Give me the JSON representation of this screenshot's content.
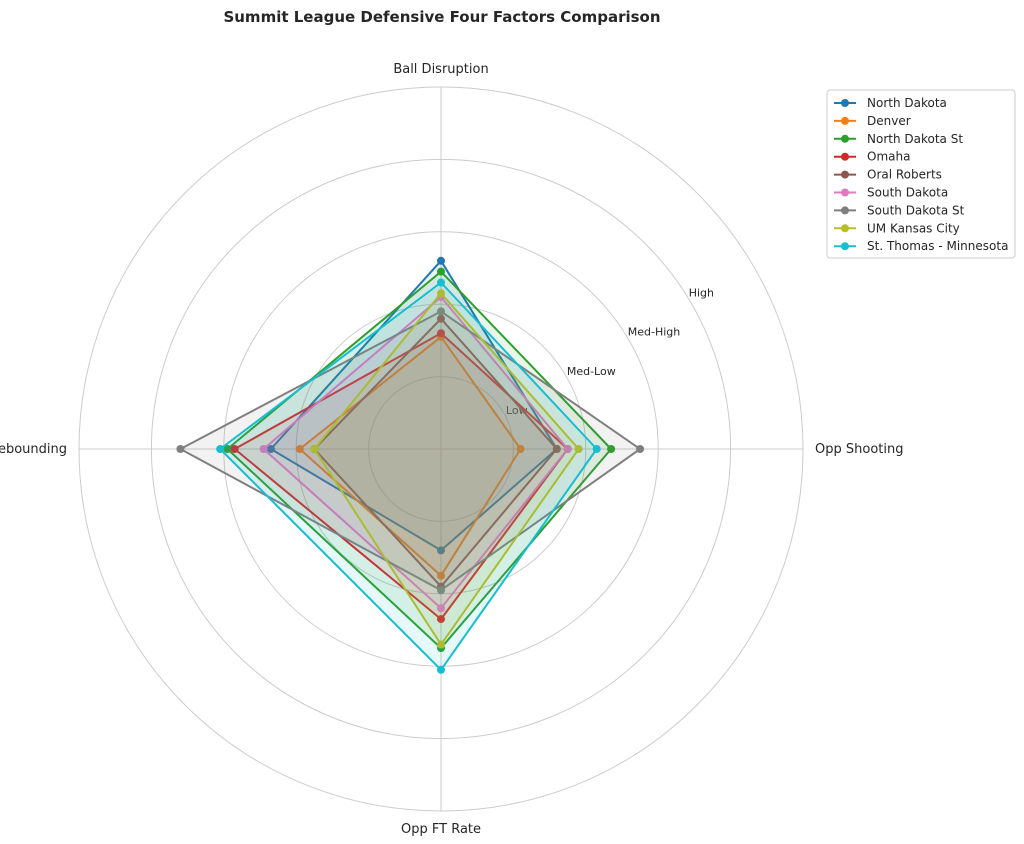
{
  "chart_data": {
    "type": "radar",
    "title": "Summit League Defensive Four Factors Comparison",
    "axes": [
      "Ball Disruption",
      "Opp Shooting",
      "Opp FT Rate",
      "Def Rebounding"
    ],
    "tick_labels": [
      "Low",
      "Med-Low",
      "Med-High",
      "High"
    ],
    "rlim": [
      0,
      5
    ],
    "grid": true,
    "legend_position": "top-right",
    "series": [
      {
        "name": "North Dakota",
        "color": "#1f77b4",
        "values": [
          2.6,
          1.6,
          1.4,
          2.35
        ]
      },
      {
        "name": "Denver",
        "color": "#ff7f0e",
        "values": [
          1.55,
          1.1,
          1.75,
          1.95
        ]
      },
      {
        "name": "North Dakota St",
        "color": "#2ca02c",
        "values": [
          2.45,
          2.35,
          2.75,
          2.95
        ]
      },
      {
        "name": "Omaha",
        "color": "#d62728",
        "values": [
          1.6,
          1.75,
          2.35,
          2.85
        ]
      },
      {
        "name": "Oral Roberts",
        "color": "#8c564b",
        "values": [
          1.8,
          1.6,
          1.9,
          1.75
        ]
      },
      {
        "name": "South Dakota",
        "color": "#e377c2",
        "values": [
          2.1,
          1.75,
          2.2,
          2.45
        ]
      },
      {
        "name": "South Dakota St",
        "color": "#7f7f7f",
        "values": [
          1.9,
          2.75,
          1.95,
          3.6
        ]
      },
      {
        "name": "UM Kansas City",
        "color": "#bcbd22",
        "values": [
          2.15,
          1.9,
          2.7,
          1.75
        ]
      },
      {
        "name": "St. Thomas - Minnesota",
        "color": "#17becf",
        "values": [
          2.3,
          2.15,
          3.05,
          3.05
        ]
      }
    ]
  }
}
